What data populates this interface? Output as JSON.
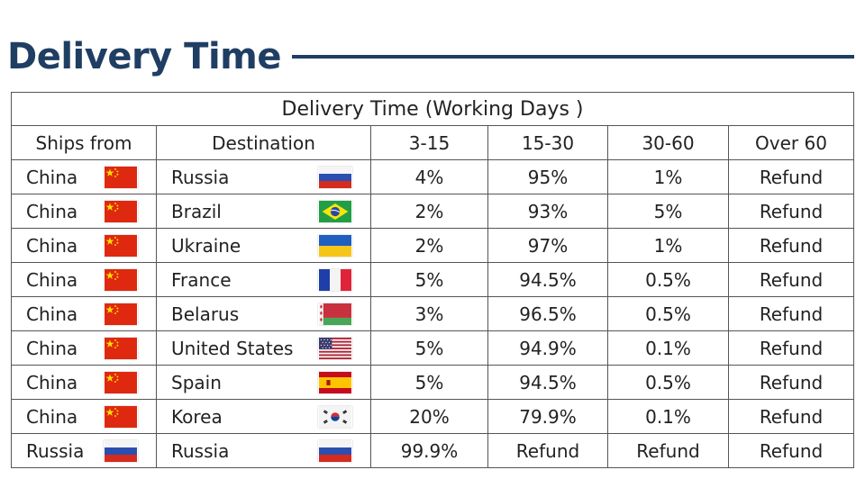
{
  "page_title": "Delivery Time",
  "table": {
    "caption": "Delivery Time (Working Days )",
    "headers": [
      "Ships from",
      "Destination",
      "3-15",
      "15-30",
      "30-60",
      "Over 60"
    ],
    "rows": [
      {
        "from": "China",
        "from_flag": "china-flag-icon",
        "dest": "Russia",
        "dest_flag": "russia-flag-icon",
        "c1": "4%",
        "c2": "95%",
        "c3": "1%",
        "c4": "Refund"
      },
      {
        "from": "China",
        "from_flag": "china-flag-icon",
        "dest": "Brazil",
        "dest_flag": "brazil-flag-icon",
        "c1": "2%",
        "c2": "93%",
        "c3": "5%",
        "c4": "Refund"
      },
      {
        "from": "China",
        "from_flag": "china-flag-icon",
        "dest": "Ukraine",
        "dest_flag": "ukraine-flag-icon",
        "c1": "2%",
        "c2": "97%",
        "c3": "1%",
        "c4": "Refund"
      },
      {
        "from": "China",
        "from_flag": "china-flag-icon",
        "dest": "France",
        "dest_flag": "france-flag-icon",
        "c1": "5%",
        "c2": "94.5%",
        "c3": "0.5%",
        "c4": "Refund"
      },
      {
        "from": "China",
        "from_flag": "china-flag-icon",
        "dest": "Belarus",
        "dest_flag": "belarus-flag-icon",
        "c1": "3%",
        "c2": "96.5%",
        "c3": "0.5%",
        "c4": "Refund"
      },
      {
        "from": "China",
        "from_flag": "china-flag-icon",
        "dest": "United States",
        "dest_flag": "usa-flag-icon",
        "c1": "5%",
        "c2": "94.9%",
        "c3": "0.1%",
        "c4": "Refund"
      },
      {
        "from": "China",
        "from_flag": "china-flag-icon",
        "dest": "Spain",
        "dest_flag": "spain-flag-icon",
        "c1": "5%",
        "c2": "94.5%",
        "c3": "0.5%",
        "c4": "Refund"
      },
      {
        "from": "China",
        "from_flag": "china-flag-icon",
        "dest": "Korea",
        "dest_flag": "korea-flag-icon",
        "c1": "20%",
        "c2": "79.9%",
        "c3": "0.1%",
        "c4": "Refund"
      },
      {
        "from": "Russia",
        "from_flag": "russia-flag-icon",
        "dest": "Russia",
        "dest_flag": "russia-flag-icon",
        "c1": "99.9%",
        "c2": "Refund",
        "c3": "Refund",
        "c4": "Refund"
      }
    ]
  },
  "colors": {
    "heading": "#1f3e63",
    "border": "#555555"
  }
}
